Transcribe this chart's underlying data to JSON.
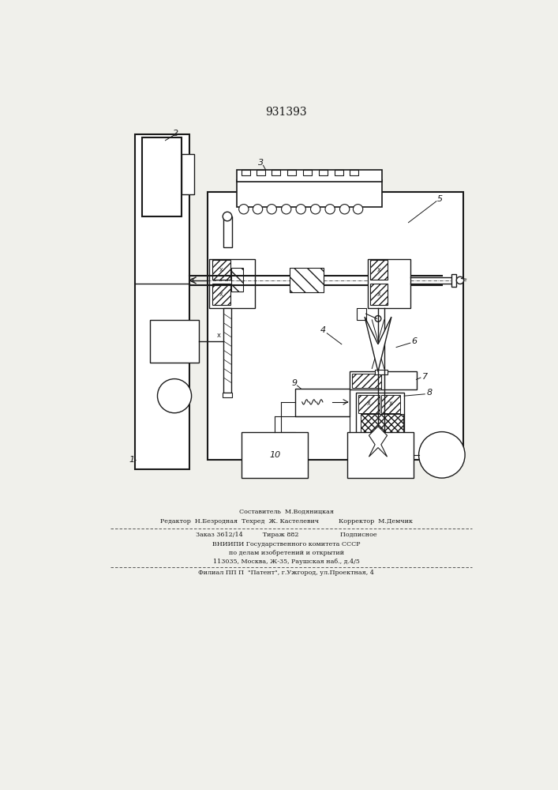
{
  "title": "931393",
  "title_fontsize": 10,
  "bg_color": "#f0f0eb",
  "line_color": "#1a1a1a",
  "footer_line1": "Составитель  М.Водяницкая",
  "footer_line2": "Редактор  Н.Безродная  Техред  Ж. Кастелевич          Корректор  М.Демчик",
  "footer_line3": "Заказ 3612/14          Тираж 882                     Подписное",
  "footer_line4": "ВНИИПИ Государственного комитета СССР",
  "footer_line5": "по делам изобретений и открытий",
  "footer_line6": "113035, Москва, Ж-35, Раушская наб., д.4/5",
  "footer_line7": "Филиал ПП П  \"Патент\", г.Ужгород, ул.Проектная, 4"
}
